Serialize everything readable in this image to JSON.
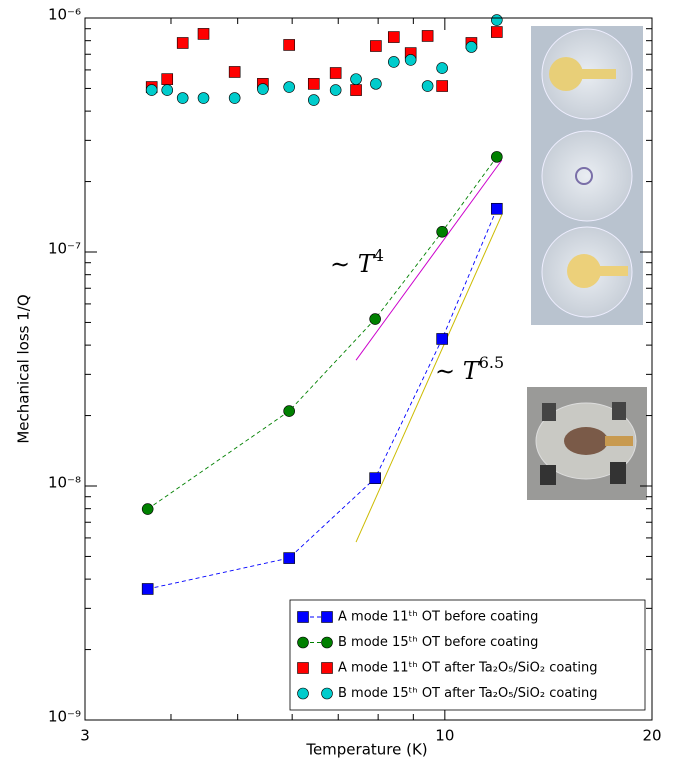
{
  "chart_data": {
    "type": "line",
    "xlabel": "Temperature (K)",
    "ylabel": "Mechanical loss 1/Q",
    "xscale": "log",
    "yscale": "log",
    "xlim": [
      3,
      20
    ],
    "ylim": [
      1e-09,
      1e-06
    ],
    "xticks": [
      3,
      10,
      20
    ],
    "xminorticks": [
      4,
      5,
      6,
      7,
      8,
      9
    ],
    "yticks": [
      {
        "value": 1e-09,
        "label": "10⁻⁹"
      },
      {
        "value": 1e-08,
        "label": "10⁻⁸"
      },
      {
        "value": 1e-07,
        "label": "10⁻⁷"
      },
      {
        "value": 1e-06,
        "label": "10⁻⁶"
      }
    ],
    "yminorticks": [
      2e-09,
      3e-09,
      4e-09,
      5e-09,
      6e-09,
      7e-09,
      8e-09,
      9e-09,
      2e-08,
      3e-08,
      4e-08,
      5e-08,
      6e-08,
      7e-08,
      8e-08,
      9e-08,
      2e-07,
      3e-07,
      4e-07,
      5e-07,
      6e-07,
      7e-07,
      8e-07,
      9e-07
    ],
    "legend": "lower right",
    "series": [
      {
        "name": "A mode 11ᵗʰ OT before coating",
        "color": "#0000ff",
        "marker": "square",
        "linestyle": "dashed",
        "x": [
          3.7,
          5.94,
          7.92,
          9.91,
          11.9
        ],
        "values": [
          3.63e-09,
          4.92e-09,
          1.08e-08,
          4.25e-08,
          1.53e-07
        ]
      },
      {
        "name": "B mode 15ᵗʰ OT before coating",
        "color": "#008000",
        "marker": "circle",
        "linestyle": "dashed",
        "x": [
          3.7,
          5.94,
          7.92,
          9.91,
          11.9
        ],
        "values": [
          7.97e-09,
          2.09e-08,
          5.17e-08,
          1.22e-07,
          2.55e-07
        ]
      },
      {
        "name": "A mode 11ᵗʰ OT after Ta₂O₅/SiO₂ coating",
        "color": "#ff0000",
        "marker": "square",
        "linestyle": "none",
        "x": [
          3.75,
          3.95,
          4.16,
          4.46,
          4.95,
          5.44,
          5.94,
          6.45,
          6.94,
          7.43,
          7.94,
          8.43,
          8.92,
          9.44,
          9.91,
          10.93,
          11.9
        ],
        "values": [
          5.07e-07,
          5.48e-07,
          7.82e-07,
          8.55e-07,
          5.88e-07,
          5.23e-07,
          7.67e-07,
          5.23e-07,
          5.82e-07,
          4.92e-07,
          7.59e-07,
          8.29e-07,
          7.08e-07,
          8.38e-07,
          5.12e-07,
          7.82e-07,
          8.71e-07
        ]
      },
      {
        "name": "B mode 15ᵗʰ OT after Ta₂O₅/SiO₂ coating",
        "color": "#00cccc",
        "marker": "circle",
        "linestyle": "none",
        "x": [
          3.75,
          3.95,
          4.16,
          4.46,
          4.95,
          5.44,
          5.94,
          6.45,
          6.94,
          7.43,
          7.94,
          8.43,
          8.92,
          9.44,
          9.91,
          10.93,
          11.9
        ],
        "values": [
          4.92e-07,
          4.92e-07,
          4.55e-07,
          4.55e-07,
          4.55e-07,
          4.97e-07,
          5.07e-07,
          4.46e-07,
          4.92e-07,
          5.48e-07,
          5.23e-07,
          6.49e-07,
          6.62e-07,
          5.12e-07,
          6.11e-07,
          7.52e-07,
          9.8e-07
        ]
      }
    ],
    "fits": [
      {
        "label": "∼ T",
        "exponent": "4",
        "color": "#cc00cc",
        "x": [
          7.43,
          12.1
        ],
        "values": [
          3.45e-08,
          2.47e-07
        ]
      },
      {
        "label": "∼ T",
        "exponent": "6.5",
        "color": "#ccbb00",
        "x": [
          7.43,
          12.1
        ],
        "values": [
          5.76e-09,
          1.44e-07
        ]
      }
    ]
  }
}
